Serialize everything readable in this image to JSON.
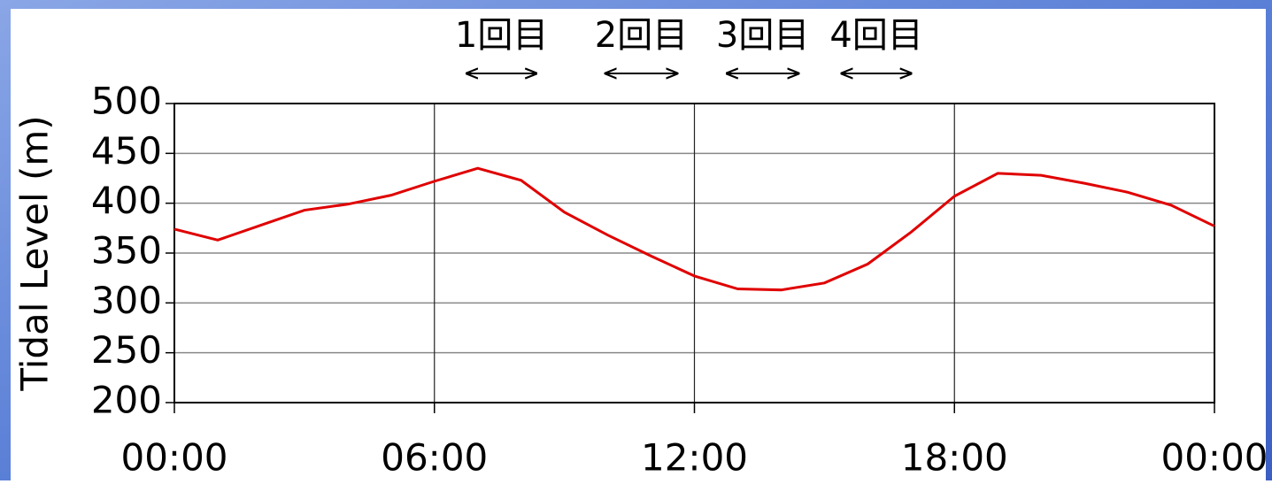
{
  "chart_data": {
    "type": "line",
    "ylabel": "Tidal Level (m)",
    "x": [
      0,
      1,
      2,
      3,
      4,
      5,
      6,
      7,
      8,
      9,
      10,
      11,
      12,
      13,
      14,
      15,
      16,
      17,
      18,
      19,
      20,
      21,
      22,
      23,
      24
    ],
    "series": [
      {
        "name": "Tidal Level",
        "color": "#e00000",
        "values": [
          374,
          363,
          378,
          393,
          399,
          408,
          422,
          435,
          423,
          391,
          368,
          347,
          327,
          314,
          313,
          320,
          339,
          371,
          407,
          430,
          428,
          420,
          411,
          398,
          377
        ]
      }
    ],
    "xlim": [
      0,
      24
    ],
    "xticks": [
      {
        "value": 0,
        "label": "00:00"
      },
      {
        "value": 6,
        "label": "06:00"
      },
      {
        "value": 12,
        "label": "12:00"
      },
      {
        "value": 18,
        "label": "18:00"
      },
      {
        "value": 24,
        "label": "00:00"
      }
    ],
    "ylim": [
      200,
      500
    ],
    "yticks": [
      200,
      250,
      300,
      350,
      400,
      450,
      500
    ],
    "grid": true,
    "annotations": [
      {
        "text": "1回目",
        "x_start": 6.75,
        "x_end": 8.35
      },
      {
        "text": "2回目",
        "x_start": 9.95,
        "x_end": 11.6
      },
      {
        "text": "3回目",
        "x_start": 12.75,
        "x_end": 14.4
      },
      {
        "text": "4回目",
        "x_start": 15.4,
        "x_end": 17.0
      }
    ]
  }
}
